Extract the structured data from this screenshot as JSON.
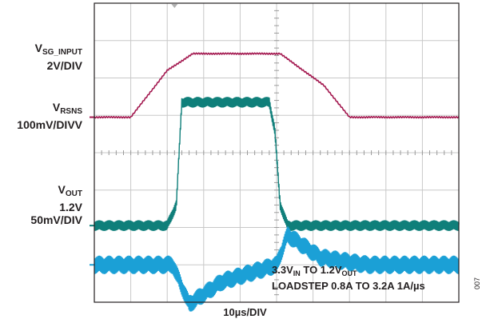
{
  "chart_data": {
    "type": "line",
    "xlabel": "10µs/DIV",
    "grid": true,
    "x_divisions": 10,
    "y_divisions": 8,
    "colors": {
      "sg_input": "#a3184f",
      "rsns": "#0f7f7a",
      "out": "#1ba0d6",
      "grid": "#c8c8c8",
      "frame": "#231f20"
    },
    "channels": [
      {
        "label_main": "V",
        "label_sub": "SG_INPUT",
        "scale": "2V/DIV",
        "x": [
          0,
          1.0,
          2.0,
          2.7,
          4.75,
          5.1,
          6.3,
          7.0,
          10
        ],
        "y": [
          0.95,
          0.95,
          2.2,
          2.65,
          2.65,
          2.65,
          1.8,
          0.95,
          0.95
        ]
      },
      {
        "label_main": "V",
        "label_sub": "RSNS",
        "scale": "100mV/DIVV",
        "x": [
          0,
          2.0,
          2.25,
          2.4,
          4.8,
          4.95,
          5.1,
          5.3,
          10
        ],
        "y": [
          -1.95,
          -1.95,
          -1.4,
          1.35,
          1.35,
          0.6,
          -1.4,
          -1.95,
          -1.95
        ]
      },
      {
        "label_main": "V",
        "label_sub": "OUT",
        "extra": "1.2V",
        "scale": "50mV/DIV",
        "x": [
          0,
          2.15,
          2.6,
          3.5,
          4.5,
          5.0,
          5.3,
          6.2,
          7.5,
          10
        ],
        "y": [
          -3.0,
          -3.0,
          -4.05,
          -3.45,
          -3.15,
          -3.0,
          -2.2,
          -2.8,
          -3.0,
          -3.0
        ]
      }
    ],
    "annotation": {
      "line1_a": "3.3V",
      "line1_b": "IN",
      "line1_c": " TO 1.2V",
      "line1_d": "OUT",
      "line2": "LOADSTEP 0.8A TO 3.2A 1A/µs"
    },
    "figure_id": "007"
  }
}
